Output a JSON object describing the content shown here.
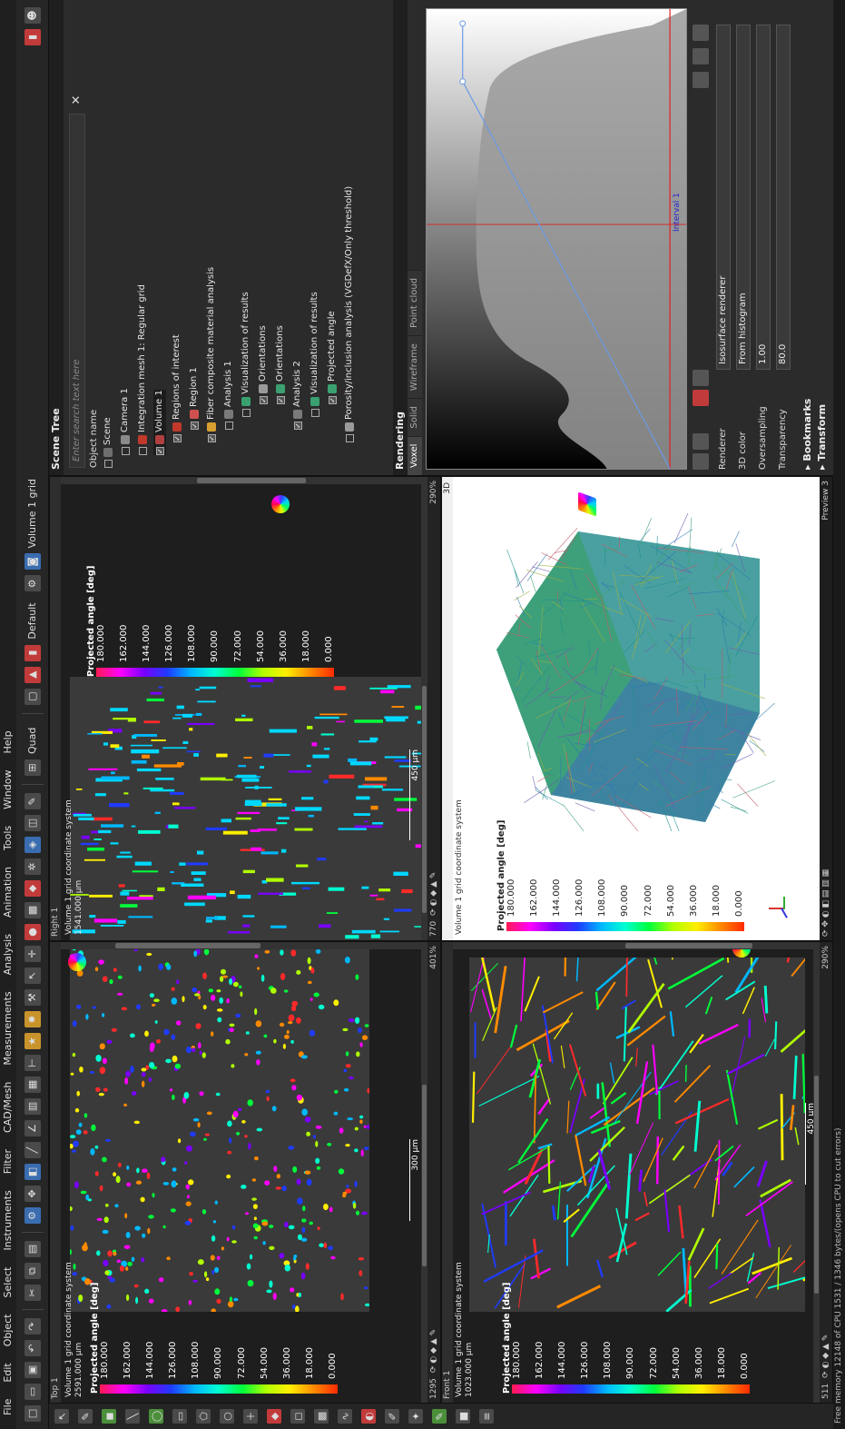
{
  "menu": [
    "File",
    "Edit",
    "Object",
    "Select",
    "Instruments",
    "Filter",
    "CAD/Mesh",
    "Measurements",
    "Analysis",
    "Animation",
    "Tools",
    "Window",
    "Help"
  ],
  "toolbar": {
    "layout_label": "Quad",
    "style_label": "Default",
    "volume_label": "Volume 1 grid"
  },
  "viewports": {
    "top": {
      "title": "Top 1",
      "coord_system": "Volume 1 grid coordinate system",
      "size": "2591.000 µm",
      "legend_title": "Projected angle [deg]",
      "scale": "300 µm",
      "zoom": "401%",
      "slice": "1295"
    },
    "right": {
      "title": "Right 1",
      "coord_system": "Volume 1 grid coordinate system",
      "size": "1541.000 µm",
      "legend_title": "Projected angle [deg]",
      "scale": "450 µm",
      "zoom": "290%",
      "slice": "770"
    },
    "front": {
      "title": "Front 1",
      "coord_system": "Volume 1 grid coordinate system",
      "size": "1023.000 µm",
      "legend_title": "Projected angle [deg]",
      "scale": "450 µm",
      "zoom": "290%",
      "slice": "511"
    },
    "preview": {
      "title": "3D",
      "coord_system": "Volume 1 grid coordinate system",
      "legend_title": "Projected angle [deg]",
      "footer": "Preview 3"
    }
  },
  "legend_ticks": [
    "180.000",
    "162.000",
    "144.000",
    "126.000",
    "108.000",
    "90.000",
    "72.000",
    "54.000",
    "36.000",
    "18.000",
    "0.000"
  ],
  "scene_tree": {
    "header": "Scene Tree",
    "search_placeholder": "Enter search text here",
    "column": "Object name",
    "items": [
      {
        "label": "Scene",
        "indent": 0,
        "check": false,
        "color": "#6f6f6f"
      },
      {
        "label": "Camera 1",
        "indent": 1,
        "check": false,
        "color": "#8a8a8a"
      },
      {
        "label": "Integration mesh 1: Regular grid",
        "indent": 1,
        "check": false,
        "color": "#c0392b"
      },
      {
        "label": "Volume 1",
        "indent": 1,
        "check": true,
        "color": "#b04040"
      },
      {
        "label": "Regions of interest",
        "indent": 2,
        "check": true,
        "color": "#c0392b"
      },
      {
        "label": "Region 1",
        "indent": 3,
        "check": true,
        "color": "#d05050"
      },
      {
        "label": "Fiber composite material analysis",
        "indent": 2,
        "check": true,
        "color": "#d8a030"
      },
      {
        "label": "Analysis 1",
        "indent": 3,
        "check": false,
        "color": "#7a7a7a"
      },
      {
        "label": "Visualization of results",
        "indent": 4,
        "check": false,
        "color": "#3aa070"
      },
      {
        "label": "Orientations",
        "indent": 5,
        "check": true,
        "color": "#9a9a9a"
      },
      {
        "label": "Orientations",
        "indent": 5,
        "check": true,
        "color": "#3aa070"
      },
      {
        "label": "Analysis 2",
        "indent": 3,
        "check": true,
        "color": "#7a7a7a"
      },
      {
        "label": "Visualization of results",
        "indent": 4,
        "check": false,
        "color": "#3aa070"
      },
      {
        "label": "Projected angle",
        "indent": 5,
        "check": true,
        "color": "#3aa070"
      },
      {
        "label": "Porosity/inclusion analysis (VGDefX/Only threshold)",
        "indent": 2,
        "check": false,
        "color": "#9a9a9a"
      }
    ]
  },
  "rendering": {
    "header": "Rendering",
    "tabs": [
      "Voxel",
      "Solid",
      "Wireframe",
      "Point cloud"
    ],
    "interval_label": "Interval 1",
    "renderer_label": "Renderer",
    "renderer_value": "Isosurface renderer",
    "color_label": "3D color",
    "color_value": "From histogram",
    "oversampling_label": "Oversampling",
    "oversampling_value": "1.00",
    "transparency_label": "Transparency",
    "transparency_value": "80.0"
  },
  "bookmarks_label": "Bookmarks",
  "transform_label": "Transform",
  "status_text": "Free memory 12148 of CPU 1531 / 1346 bytes/(opens CPU to cut errors)"
}
